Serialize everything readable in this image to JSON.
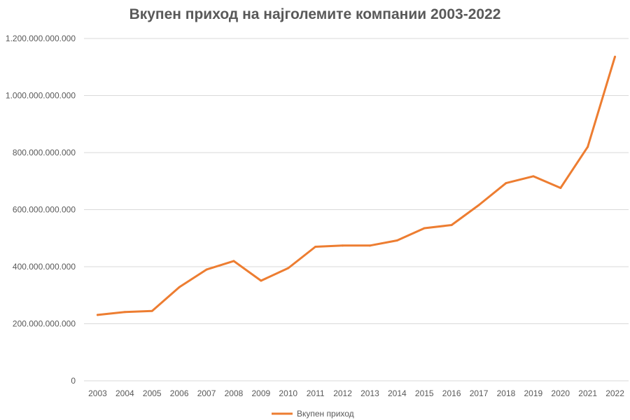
{
  "chart_data": {
    "type": "line",
    "title": "Вкупен приход на најголемите компании 2003-2022",
    "xlabel": "",
    "ylabel": "",
    "x": [
      "2003",
      "2004",
      "2005",
      "2006",
      "2007",
      "2008",
      "2009",
      "2010",
      "2011",
      "2012",
      "2013",
      "2014",
      "2015",
      "2016",
      "2017",
      "2018",
      "2019",
      "2020",
      "2021",
      "2022"
    ],
    "series": [
      {
        "name": "Вкупен приход",
        "color": "#ED7D31",
        "values": [
          231000000000,
          241000000000,
          245000000000,
          328000000000,
          390000000000,
          420000000000,
          351000000000,
          395000000000,
          470000000000,
          474000000000,
          474000000000,
          492000000000,
          535000000000,
          546000000000,
          616000000000,
          693000000000,
          717000000000,
          676000000000,
          820000000000,
          1136000000000
        ]
      }
    ],
    "ylim": [
      0,
      1200000000000
    ],
    "yticks": [
      "0",
      "200.000.000.000",
      "400.000.000.000",
      "600.000.000.000",
      "800.000.000.000",
      "1.000.000.000.000",
      "1.200.000.000.000"
    ],
    "grid": true,
    "legend": "bottom"
  }
}
